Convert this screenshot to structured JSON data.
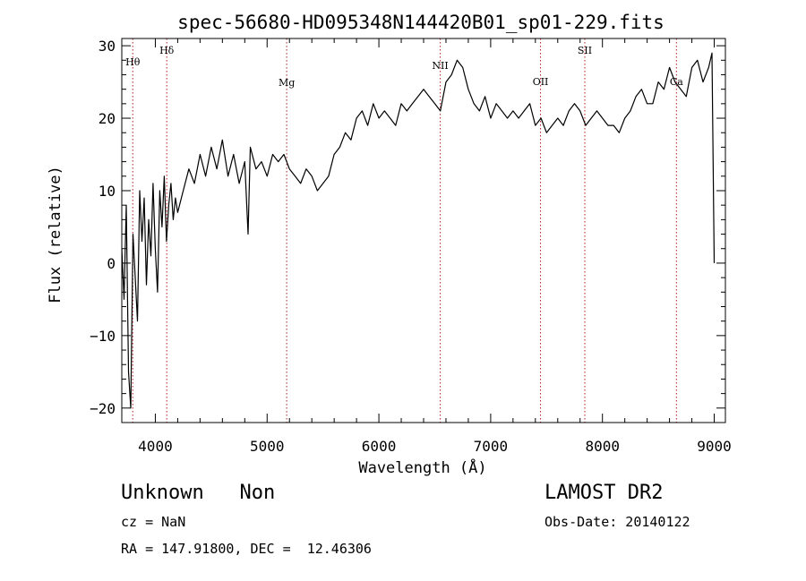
{
  "chart_data": {
    "type": "line",
    "title": "spec-56680-HD095348N144420B01_sp01-229.fits",
    "xlabel": "Wavelength (Å)",
    "ylabel": "Flux (relative)",
    "xlim": [
      3700,
      9100
    ],
    "ylim": [
      -22,
      31
    ],
    "xticks": [
      4000,
      5000,
      6000,
      7000,
      8000,
      9000
    ],
    "yticks": [
      -20,
      -10,
      0,
      10,
      20,
      30
    ],
    "grid": false,
    "line_color": "#000000",
    "marker_color": "#b02020",
    "line_markers": [
      {
        "label": "Hθ",
        "x": 3798
      },
      {
        "label": "Hδ",
        "x": 4102
      },
      {
        "label": "Mg",
        "x": 5175
      },
      {
        "label": "NII",
        "x": 6549
      },
      {
        "label": "OII",
        "x": 7446
      },
      {
        "label": "SII",
        "x": 7842
      },
      {
        "label": "Ca",
        "x": 8662
      }
    ],
    "series": [
      {
        "x": [
          3700,
          3720,
          3740,
          3760,
          3780,
          3800,
          3820,
          3840,
          3860,
          3880,
          3900,
          3920,
          3940,
          3960,
          3980,
          4000,
          4020,
          4040,
          4060,
          4080,
          4100,
          4120,
          4140,
          4160,
          4180,
          4200,
          4250,
          4300,
          4350,
          4400,
          4450,
          4500,
          4550,
          4600,
          4650,
          4700,
          4750,
          4800,
          4830,
          4850,
          4900,
          4950,
          5000,
          5050,
          5100,
          5150,
          5200,
          5250,
          5300,
          5350,
          5400,
          5450,
          5500,
          5550,
          5600,
          5650,
          5700,
          5750,
          5800,
          5850,
          5900,
          5950,
          6000,
          6050,
          6100,
          6150,
          6200,
          6250,
          6300,
          6350,
          6400,
          6450,
          6500,
          6550,
          6600,
          6650,
          6700,
          6750,
          6800,
          6850,
          6900,
          6950,
          7000,
          7050,
          7100,
          7150,
          7200,
          7250,
          7300,
          7350,
          7400,
          7450,
          7500,
          7550,
          7600,
          7650,
          7700,
          7750,
          7800,
          7850,
          7900,
          7950,
          8000,
          8050,
          8100,
          8150,
          8200,
          8250,
          8300,
          8350,
          8400,
          8450,
          8500,
          8550,
          8600,
          8650,
          8700,
          8750,
          8800,
          8850,
          8900,
          8950,
          8980,
          9000
        ],
        "y": [
          2,
          -5,
          8,
          -15,
          -20,
          4,
          -2,
          -8,
          10,
          3,
          9,
          -3,
          6,
          1,
          11,
          2,
          -4,
          10,
          5,
          12,
          3,
          8,
          11,
          6,
          9,
          7,
          10,
          13,
          11,
          15,
          12,
          16,
          13,
          17,
          12,
          15,
          11,
          14,
          4,
          16,
          13,
          14,
          12,
          15,
          14,
          15,
          13,
          12,
          11,
          13,
          12,
          10,
          11,
          12,
          15,
          16,
          18,
          17,
          20,
          21,
          19,
          22,
          20,
          21,
          20,
          19,
          22,
          21,
          22,
          23,
          24,
          23,
          22,
          21,
          25,
          26,
          28,
          27,
          24,
          22,
          21,
          23,
          20,
          22,
          21,
          20,
          21,
          20,
          21,
          22,
          19,
          20,
          18,
          19,
          20,
          19,
          21,
          22,
          21,
          19,
          20,
          21,
          20,
          19,
          19,
          18,
          20,
          21,
          23,
          24,
          22,
          22,
          25,
          24,
          27,
          25,
          24,
          23,
          27,
          28,
          25,
          27,
          29,
          0
        ]
      }
    ]
  },
  "info": {
    "class_line": "Unknown   Non",
    "survey": "LAMOST DR2",
    "cz": "cz = NaN",
    "obs_date": "Obs-Date: 20140122",
    "coords": "RA = 147.91800, DEC =  12.46306"
  }
}
